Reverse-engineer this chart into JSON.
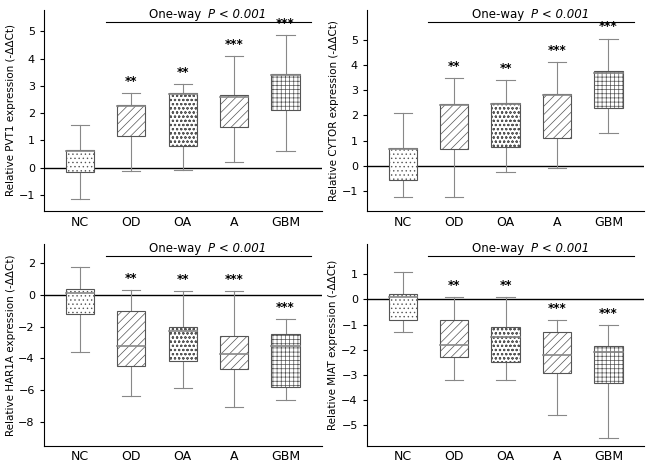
{
  "panels": [
    {
      "title_prefix": "One-way  ",
      "title_suffix": " < 0.001",
      "ylabel": "Relative PVT1 expression (-ΔΔCt)",
      "ylim": [
        -1.6,
        5.8
      ],
      "yticks": [
        -1,
        0,
        1,
        2,
        3,
        4,
        5
      ],
      "zero_line": true,
      "categories": [
        "NC",
        "OD",
        "OA",
        "A",
        "GBM"
      ],
      "sig_labels": [
        "",
        "**",
        "**",
        "***",
        "***"
      ],
      "boxes": [
        {
          "q1": -0.18,
          "med": 0.6,
          "q3": 0.65,
          "whislo": -1.15,
          "whishi": 1.55,
          "hatch": "...."
        },
        {
          "q1": 1.15,
          "med": 2.25,
          "q3": 2.3,
          "whislo": -0.12,
          "whishi": 2.75,
          "hatch": "////"
        },
        {
          "q1": 0.78,
          "med": 2.7,
          "q3": 2.75,
          "whislo": -0.1,
          "whishi": 3.05,
          "hatch": "oooo"
        },
        {
          "q1": 1.48,
          "med": 2.6,
          "q3": 2.65,
          "whislo": 0.2,
          "whishi": 4.1,
          "hatch": "////"
        },
        {
          "q1": 2.1,
          "med": 3.4,
          "q3": 3.45,
          "whislo": 0.6,
          "whishi": 4.85,
          "hatch": "++++"
        }
      ]
    },
    {
      "title_prefix": "One-way  ",
      "title_suffix": " < 0.001",
      "ylabel": "Relative CYTOR expression (-ΔΔCt)",
      "ylim": [
        -1.8,
        6.2
      ],
      "yticks": [
        -1,
        0,
        1,
        2,
        3,
        4,
        5
      ],
      "zero_line": true,
      "categories": [
        "NC",
        "OD",
        "OA",
        "A",
        "GBM"
      ],
      "sig_labels": [
        "",
        "**",
        "**",
        "***",
        "***"
      ],
      "boxes": [
        {
          "q1": -0.55,
          "med": 0.65,
          "q3": 0.7,
          "whislo": -1.25,
          "whishi": 2.1,
          "hatch": "...."
        },
        {
          "q1": 0.65,
          "med": 2.4,
          "q3": 2.45,
          "whislo": -1.25,
          "whishi": 3.5,
          "hatch": "////"
        },
        {
          "q1": 0.75,
          "med": 2.45,
          "q3": 2.5,
          "whislo": -0.25,
          "whishi": 3.4,
          "hatch": "oooo"
        },
        {
          "q1": 1.1,
          "med": 2.8,
          "q3": 2.85,
          "whislo": -0.1,
          "whishi": 4.1,
          "hatch": "////"
        },
        {
          "q1": 2.3,
          "med": 3.7,
          "q3": 3.75,
          "whislo": 1.3,
          "whishi": 5.05,
          "hatch": "++++"
        }
      ]
    },
    {
      "title_prefix": "One-way  ",
      "title_suffix": " < 0.001",
      "ylabel": "Relative HAR1A expression (-ΔΔCt)",
      "ylim": [
        -9.5,
        3.2
      ],
      "yticks": [
        -8,
        -6,
        -4,
        -2,
        0,
        2
      ],
      "zero_line": true,
      "categories": [
        "NC",
        "OD",
        "OA",
        "A",
        "GBM"
      ],
      "sig_labels": [
        "",
        "**",
        "**",
        "***",
        "***"
      ],
      "boxes": [
        {
          "q1": -1.2,
          "med": 0.1,
          "q3": 0.35,
          "whislo": -3.6,
          "whishi": 1.75,
          "hatch": "...."
        },
        {
          "q1": -4.5,
          "med": -3.2,
          "q3": -1.05,
          "whislo": -6.4,
          "whishi": 0.3,
          "hatch": "////"
        },
        {
          "q1": -4.2,
          "med": -2.3,
          "q3": -2.0,
          "whislo": -5.9,
          "whishi": 0.25,
          "hatch": "oooo"
        },
        {
          "q1": -4.7,
          "med": -3.7,
          "q3": -2.6,
          "whislo": -7.1,
          "whishi": 0.25,
          "hatch": "////"
        },
        {
          "q1": -5.8,
          "med": -3.2,
          "q3": -2.5,
          "whislo": -6.6,
          "whishi": -1.5,
          "hatch": "++++"
        }
      ]
    },
    {
      "title_prefix": "One-way  ",
      "title_suffix": " < 0.001",
      "ylabel": "Relative MIAT expression (-ΔΔCt)",
      "ylim": [
        -5.8,
        2.2
      ],
      "yticks": [
        -5,
        -4,
        -3,
        -2,
        -1,
        0,
        1
      ],
      "zero_line": true,
      "categories": [
        "NC",
        "OD",
        "OA",
        "A",
        "GBM"
      ],
      "sig_labels": [
        "",
        "**",
        "**",
        "***",
        "***"
      ],
      "boxes": [
        {
          "q1": -0.8,
          "med": 0.1,
          "q3": 0.2,
          "whislo": -1.3,
          "whishi": 1.1,
          "hatch": "...."
        },
        {
          "q1": -2.3,
          "med": -1.8,
          "q3": -0.8,
          "whislo": -3.2,
          "whishi": 0.1,
          "hatch": "////"
        },
        {
          "q1": -2.5,
          "med": -1.5,
          "q3": -1.1,
          "whislo": -3.2,
          "whishi": 0.1,
          "hatch": "oooo"
        },
        {
          "q1": -2.9,
          "med": -2.2,
          "q3": -1.3,
          "whislo": -4.6,
          "whishi": -0.8,
          "hatch": "////"
        },
        {
          "q1": -3.3,
          "med": -2.1,
          "q3": -1.85,
          "whislo": -5.5,
          "whishi": -1.0,
          "hatch": "++++"
        }
      ]
    }
  ],
  "box_width": 0.55,
  "box_edgecolor": "#555555",
  "median_color": "#888888",
  "whisker_color": "#888888",
  "cap_color": "#888888",
  "fontsize_title": 8.5,
  "fontsize_label": 7.5,
  "fontsize_tick": 8,
  "fontsize_sig": 8.5,
  "fontsize_xticklabel": 9
}
